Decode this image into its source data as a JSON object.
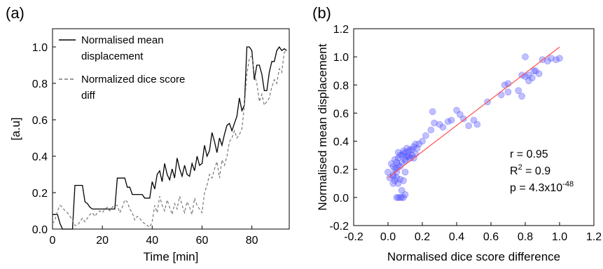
{
  "chart_data": [
    {
      "type": "line",
      "panel_label": "(a)",
      "xlabel": "Time [min]",
      "ylabel": "[a.u]",
      "xlim": [
        0,
        95
      ],
      "ylim": [
        0,
        1.1
      ],
      "xticks": [
        0,
        20,
        40,
        60,
        80
      ],
      "yticks": [
        0.0,
        0.2,
        0.4,
        0.6,
        0.8,
        1.0
      ],
      "xtick_labels": [
        "0",
        "20",
        "40",
        "60",
        "80"
      ],
      "ytick_labels": [
        "0.0",
        "0.2",
        "0.4",
        "0.6",
        "0.8",
        "1.0"
      ],
      "grid": false,
      "legend": "top-left",
      "series": [
        {
          "name": "Normalised mean displacement",
          "style": "solid",
          "color": "#000000",
          "x": [
            0,
            1,
            2,
            3,
            4,
            5,
            6,
            7,
            8,
            9,
            10,
            11,
            12,
            13,
            14,
            15,
            16,
            17,
            18,
            19,
            20,
            21,
            22,
            23,
            24,
            25,
            26,
            27,
            28,
            29,
            30,
            31,
            32,
            33,
            34,
            35,
            36,
            37,
            38,
            39,
            40,
            41,
            42,
            43,
            44,
            45,
            46,
            47,
            48,
            49,
            50,
            51,
            52,
            53,
            54,
            55,
            56,
            57,
            58,
            59,
            60,
            61,
            62,
            63,
            64,
            65,
            66,
            67,
            68,
            69,
            70,
            71,
            72,
            73,
            74,
            75,
            76,
            77,
            78,
            79,
            80,
            81,
            82,
            83,
            84,
            85,
            86,
            87,
            88,
            89,
            90,
            91,
            92,
            93,
            94
          ],
          "y": [
            0.08,
            0.08,
            0.08,
            0.03,
            0.0,
            0.0,
            0.0,
            0.0,
            0.0,
            0.24,
            0.24,
            0.24,
            0.24,
            0.15,
            0.14,
            0.12,
            0.11,
            0.11,
            0.11,
            0.11,
            0.11,
            0.11,
            0.11,
            0.11,
            0.11,
            0.11,
            0.28,
            0.28,
            0.28,
            0.28,
            0.23,
            0.23,
            0.19,
            0.19,
            0.19,
            0.19,
            0.19,
            0.17,
            0.17,
            0.17,
            0.26,
            0.22,
            0.3,
            0.32,
            0.26,
            0.36,
            0.3,
            0.27,
            0.33,
            0.28,
            0.39,
            0.33,
            0.29,
            0.35,
            0.3,
            0.29,
            0.36,
            0.32,
            0.4,
            0.35,
            0.36,
            0.46,
            0.4,
            0.43,
            0.53,
            0.48,
            0.42,
            0.5,
            0.46,
            0.52,
            0.57,
            0.58,
            0.54,
            0.58,
            0.62,
            0.72,
            0.65,
            0.68,
            1.0,
            1.0,
            0.98,
            0.82,
            0.9,
            0.9,
            0.85,
            0.76,
            0.76,
            0.86,
            0.92,
            0.92,
            0.98,
            1.0,
            0.98,
            0.99,
            0.98
          ]
        },
        {
          "name": "Normalized dice score diff",
          "style": "dashed",
          "color": "#777777",
          "x": [
            0,
            1,
            2,
            3,
            4,
            5,
            6,
            7,
            8,
            9,
            10,
            11,
            12,
            13,
            14,
            15,
            16,
            17,
            18,
            19,
            20,
            21,
            22,
            23,
            24,
            25,
            26,
            27,
            28,
            29,
            30,
            31,
            32,
            33,
            34,
            35,
            36,
            37,
            38,
            39,
            40,
            41,
            42,
            43,
            44,
            45,
            46,
            47,
            48,
            49,
            50,
            51,
            52,
            53,
            54,
            55,
            56,
            57,
            58,
            59,
            60,
            61,
            62,
            63,
            64,
            65,
            66,
            67,
            68,
            69,
            70,
            71,
            72,
            73,
            74,
            75,
            76,
            77,
            78,
            79,
            80,
            81,
            82,
            83,
            84,
            85,
            86,
            87,
            88,
            89,
            90,
            91,
            92,
            93,
            94
          ],
          "y": [
            0.03,
            0.05,
            0.1,
            0.13,
            0.12,
            0.1,
            0.09,
            0.07,
            0.05,
            0.02,
            0.02,
            0.04,
            0.06,
            0.04,
            0.06,
            0.08,
            0.09,
            0.07,
            0.09,
            0.1,
            0.09,
            0.11,
            0.12,
            0.1,
            0.12,
            0.13,
            0.13,
            0.09,
            0.12,
            0.16,
            0.15,
            0.11,
            0.09,
            0.05,
            0.07,
            0.06,
            0.04,
            0.03,
            0.02,
            0.01,
            0.04,
            0.13,
            0.09,
            0.18,
            0.13,
            0.1,
            0.16,
            0.12,
            0.08,
            0.14,
            0.11,
            0.18,
            0.13,
            0.09,
            0.15,
            0.12,
            0.08,
            0.17,
            0.13,
            0.11,
            0.09,
            0.2,
            0.24,
            0.3,
            0.28,
            0.33,
            0.37,
            0.28,
            0.38,
            0.35,
            0.4,
            0.48,
            0.5,
            0.54,
            0.5,
            0.52,
            0.55,
            0.68,
            0.85,
            0.94,
            0.95,
            0.85,
            0.8,
            0.7,
            0.74,
            0.68,
            0.7,
            0.72,
            0.78,
            0.82,
            0.8,
            0.88,
            0.86,
            0.97,
            0.98
          ]
        }
      ]
    },
    {
      "type": "scatter",
      "panel_label": "(b)",
      "xlabel": "Normalised dice score difference",
      "ylabel": "Normalised mean displacement",
      "xlim": [
        -0.2,
        1.2
      ],
      "ylim": [
        -0.2,
        1.2
      ],
      "xticks": [
        -0.2,
        0.0,
        0.2,
        0.4,
        0.6,
        0.8,
        1.0,
        1.2
      ],
      "yticks": [
        -0.2,
        0.0,
        0.2,
        0.4,
        0.6,
        0.8,
        1.0,
        1.2
      ],
      "xtick_labels": [
        "-0.2",
        "0.0",
        "0.2",
        "0.4",
        "0.6",
        "0.8",
        "1.0",
        "1.2"
      ],
      "ytick_labels": [
        "-0.2",
        "0.0",
        "0.2",
        "0.4",
        "0.6",
        "0.8",
        "1.0",
        "1.2"
      ],
      "grid": false,
      "point_color": "#5a5aff",
      "fit_color": "#ff4d4d",
      "fit_line": {
        "x": [
          0.0,
          1.0
        ],
        "y": [
          0.14,
          1.07
        ]
      },
      "stats": {
        "r": "r = 0.95",
        "r2_prefix": "R",
        "r2_sup": "2",
        "r2_suffix": " = 0.9",
        "p_prefix": "p = 4.3x10",
        "p_sup": "-48"
      },
      "points": {
        "x": [
          0.05,
          0.06,
          0.07,
          0.08,
          0.09,
          0.1,
          0.08,
          0.06,
          0.04,
          0.03,
          0.05,
          0.07,
          0.09,
          0.1,
          0.04,
          0.03,
          0.02,
          0.0,
          0.01,
          0.03,
          0.05,
          0.06,
          0.08,
          0.1,
          0.12,
          0.14,
          0.15,
          0.16,
          0.17,
          0.18,
          0.12,
          0.1,
          0.08,
          0.06,
          0.05,
          0.07,
          0.09,
          0.11,
          0.13,
          0.15,
          0.16,
          0.14,
          0.12,
          0.1,
          0.07,
          0.05,
          0.03,
          0.04,
          0.06,
          0.09,
          0.11,
          0.13,
          0.2,
          0.22,
          0.25,
          0.27,
          0.3,
          0.32,
          0.35,
          0.37,
          0.4,
          0.42,
          0.44,
          0.47,
          0.5,
          0.52,
          0.58,
          0.66,
          0.68,
          0.7,
          0.7,
          0.78,
          0.8,
          0.82,
          0.84,
          0.85,
          0.86,
          0.88,
          0.9,
          0.93,
          0.95,
          0.98,
          1.0,
          0.8,
          0.78,
          0.76,
          0.82,
          0.26
        ],
        "y": [
          0.0,
          0.0,
          0.0,
          0.0,
          0.0,
          0.02,
          0.05,
          0.1,
          0.12,
          0.15,
          0.14,
          0.13,
          0.12,
          0.18,
          0.2,
          0.22,
          0.24,
          0.18,
          0.14,
          0.1,
          0.25,
          0.28,
          0.3,
          0.32,
          0.33,
          0.3,
          0.28,
          0.31,
          0.35,
          0.38,
          0.29,
          0.27,
          0.25,
          0.23,
          0.21,
          0.3,
          0.33,
          0.35,
          0.34,
          0.36,
          0.38,
          0.34,
          0.3,
          0.26,
          0.22,
          0.18,
          0.16,
          0.27,
          0.32,
          0.31,
          0.29,
          0.28,
          0.4,
          0.44,
          0.48,
          0.53,
          0.52,
          0.5,
          0.54,
          0.55,
          0.62,
          0.59,
          0.56,
          0.51,
          0.55,
          0.52,
          0.68,
          0.73,
          0.8,
          0.81,
          0.75,
          0.87,
          0.86,
          0.83,
          0.85,
          0.9,
          0.9,
          0.88,
          0.98,
          0.97,
          0.99,
          0.98,
          0.99,
          1.0,
          0.72,
          0.76,
          0.87,
          0.61
        ]
      }
    }
  ]
}
